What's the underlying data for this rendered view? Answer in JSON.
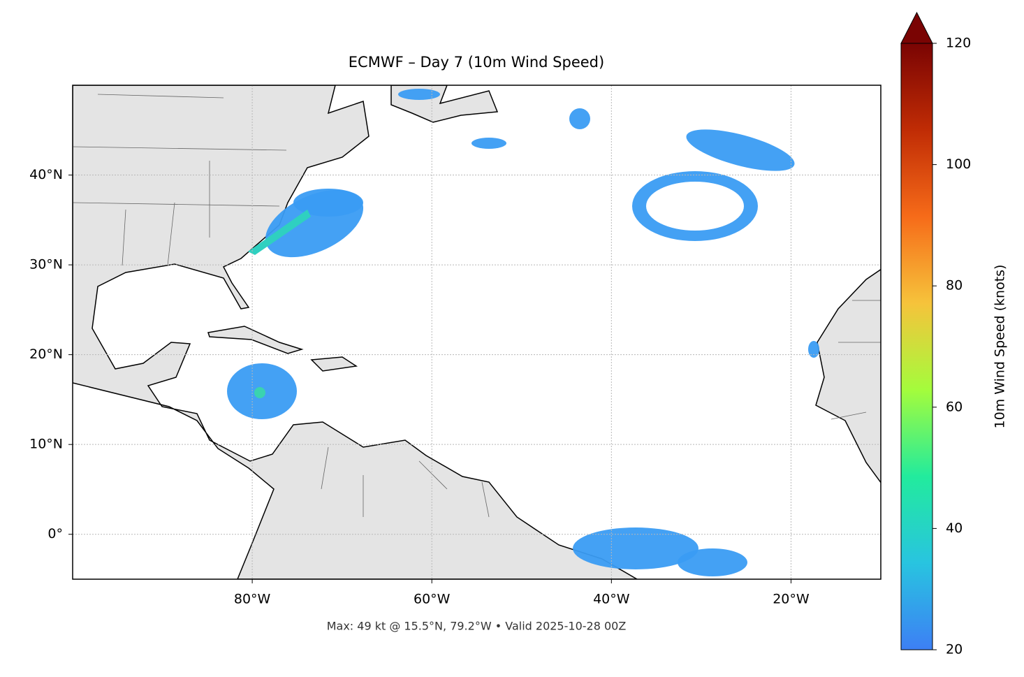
{
  "chart_data": {
    "type": "map",
    "title": "ECMWF – Day 7 (10m Wind Speed)",
    "footnote": "Max: 49 kt @ 15.5°N, 79.2°W • Valid 2025-10-28 00Z",
    "xlim": [
      -100,
      -10
    ],
    "ylim": [
      -5,
      50
    ],
    "xticks": [
      {
        "value": -80,
        "label": "80°W"
      },
      {
        "value": -60,
        "label": "60°W"
      },
      {
        "value": -40,
        "label": "40°W"
      },
      {
        "value": -20,
        "label": "20°W"
      }
    ],
    "yticks": [
      {
        "value": 0,
        "label": "0°"
      },
      {
        "value": 10,
        "label": "10°N"
      },
      {
        "value": 20,
        "label": "20°N"
      },
      {
        "value": 30,
        "label": "30°N"
      },
      {
        "value": 40,
        "label": "40°N"
      }
    ],
    "grid": true,
    "colorbar": {
      "label": "10m Wind Speed (knots)",
      "lim": [
        20,
        120
      ],
      "ticks": [
        20,
        40,
        60,
        80,
        100,
        120
      ],
      "colors": [
        "#3d7ff5",
        "#28c4e0",
        "#22eb9d",
        "#a4fc3c",
        "#f6c33b",
        "#f66b19",
        "#c02c05",
        "#7a0403"
      ],
      "extend": "max"
    }
  }
}
